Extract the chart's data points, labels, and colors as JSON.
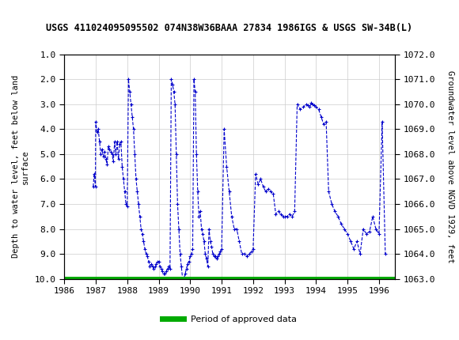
{
  "title": "USGS 411024095095502 074N38W36BAAA 27834 1986IGS & USGS SW-34B(L)",
  "header_bg": "#1a6b3c",
  "header_text": "USGS",
  "ylabel_left": "Depth to water level, feet below land\nsurface",
  "ylabel_right": "Groundwater level above NGVD 1929, feet",
  "xlabel": "",
  "ylim_left": [
    10.0,
    1.0
  ],
  "ylim_right": [
    1063.0,
    1072.0
  ],
  "xlim": [
    1986.0,
    1996.5
  ],
  "yticks_left": [
    1.0,
    2.0,
    3.0,
    4.0,
    5.0,
    6.0,
    7.0,
    8.0,
    9.0,
    10.0
  ],
  "yticks_right": [
    1063.0,
    1064.0,
    1065.0,
    1066.0,
    1067.0,
    1068.0,
    1069.0,
    1070.0,
    1071.0,
    1072.0
  ],
  "xticks": [
    1986,
    1987,
    1988,
    1989,
    1990,
    1991,
    1992,
    1993,
    1994,
    1995,
    1996
  ],
  "line_color": "#0000cc",
  "green_bar_color": "#00aa00",
  "legend_label": "Period of approved data",
  "background_color": "#ffffff",
  "plot_bg": "#ffffff",
  "grid_color": "#cccccc",
  "data_x": [
    1986.92,
    1986.95,
    1986.99,
    1987.0,
    1987.04,
    1987.08,
    1987.12,
    1987.16,
    1987.2,
    1987.24,
    1987.28,
    1987.32,
    1987.36,
    1987.4,
    1987.44,
    1987.48,
    1987.52,
    1987.56,
    1987.6,
    1987.64,
    1987.68,
    1987.72,
    1987.76,
    1987.8,
    1987.84,
    1987.88,
    1987.92,
    1987.96,
    1988.0,
    1988.04,
    1988.08,
    1988.12,
    1988.16,
    1988.2,
    1988.24,
    1988.28,
    1988.32,
    1988.36,
    1988.4,
    1988.44,
    1988.48,
    1988.52,
    1988.56,
    1988.6,
    1988.64,
    1988.68,
    1988.72,
    1988.76,
    1988.8,
    1988.84,
    1988.88,
    1988.92,
    1988.96,
    1989.0,
    1989.04,
    1989.08,
    1989.12,
    1989.16,
    1989.2,
    1989.24,
    1989.28,
    1989.32,
    1989.36,
    1989.4,
    1989.44,
    1989.48,
    1989.52,
    1989.56,
    1989.6,
    1989.64,
    1989.68,
    1989.72,
    1989.76,
    1989.8,
    1989.84,
    1989.88,
    1989.92,
    1989.96,
    1990.0,
    1990.04,
    1990.08,
    1990.12,
    1990.16,
    1990.2,
    1990.24,
    1990.28,
    1990.32,
    1990.36,
    1990.4,
    1990.44,
    1990.48,
    1990.52,
    1990.56,
    1990.6,
    1990.64,
    1990.68,
    1990.72,
    1990.76,
    1990.8,
    1990.84,
    1990.88,
    1990.92,
    1990.96,
    1991.0,
    1991.08,
    1991.16,
    1991.24,
    1991.32,
    1991.4,
    1991.48,
    1991.56,
    1991.64,
    1991.72,
    1991.8,
    1991.88,
    1991.96,
    1992.0,
    1992.08,
    1992.16,
    1992.24,
    1992.32,
    1992.4,
    1992.48,
    1992.56,
    1992.64,
    1992.72,
    1992.8,
    1992.88,
    1992.96,
    1993.0,
    1993.08,
    1993.16,
    1993.24,
    1993.32,
    1993.4,
    1993.5,
    1993.6,
    1993.7,
    1993.75,
    1993.8,
    1993.85,
    1993.9,
    1993.95,
    1994.0,
    1994.08,
    1994.16,
    1994.24,
    1994.32,
    1994.4,
    1994.5,
    1994.6,
    1994.7,
    1994.8,
    1994.9,
    1995.0,
    1995.1,
    1995.2,
    1995.3,
    1995.4,
    1995.5,
    1995.6,
    1995.7,
    1995.8,
    1995.9,
    1996.0,
    1996.1,
    1996.2
  ],
  "data_y": [
    6.3,
    5.8,
    6.3,
    3.7,
    4.1,
    4.0,
    4.5,
    5.0,
    4.8,
    5.1,
    4.9,
    5.2,
    5.4,
    4.7,
    4.8,
    4.9,
    5.0,
    5.3,
    4.5,
    5.0,
    4.5,
    5.2,
    4.6,
    4.5,
    5.5,
    6.0,
    6.5,
    7.0,
    7.1,
    2.0,
    2.5,
    3.0,
    3.5,
    4.0,
    5.0,
    6.0,
    6.5,
    7.0,
    7.5,
    8.0,
    8.2,
    8.5,
    8.8,
    9.0,
    9.1,
    9.3,
    9.5,
    9.4,
    9.5,
    9.6,
    9.5,
    9.4,
    9.3,
    9.3,
    9.5,
    9.6,
    9.7,
    9.8,
    9.8,
    9.7,
    9.6,
    9.5,
    9.6,
    2.0,
    2.2,
    2.5,
    3.0,
    5.0,
    7.0,
    8.0,
    9.0,
    9.5,
    10.0,
    10.0,
    9.8,
    9.6,
    9.4,
    9.3,
    9.1,
    9.0,
    8.8,
    2.0,
    2.5,
    5.0,
    6.5,
    7.5,
    7.3,
    8.0,
    8.2,
    8.5,
    9.0,
    9.2,
    9.5,
    8.0,
    8.5,
    8.7,
    9.0,
    9.1,
    9.1,
    9.2,
    9.1,
    9.0,
    8.9,
    8.8,
    4.0,
    5.5,
    6.5,
    7.5,
    8.0,
    8.0,
    8.5,
    9.0,
    9.0,
    9.1,
    9.0,
    8.9,
    8.8,
    5.8,
    6.2,
    6.0,
    6.3,
    6.5,
    6.4,
    6.5,
    6.6,
    7.4,
    7.3,
    7.4,
    7.5,
    7.5,
    7.5,
    7.4,
    7.5,
    7.3,
    3.0,
    3.2,
    3.1,
    3.0,
    3.05,
    3.1,
    2.95,
    3.0,
    3.05,
    3.1,
    3.2,
    3.5,
    3.8,
    3.7,
    6.5,
    7.0,
    7.3,
    7.5,
    7.8,
    8.0,
    8.2,
    8.5,
    8.8,
    8.5,
    9.0,
    8.0,
    8.2,
    8.1,
    7.5,
    8.0,
    8.2,
    3.7,
    9.0
  ],
  "green_bar_x_start": 1986.92,
  "green_bar_x_end": 1996.2,
  "green_bar_y": 10.0
}
